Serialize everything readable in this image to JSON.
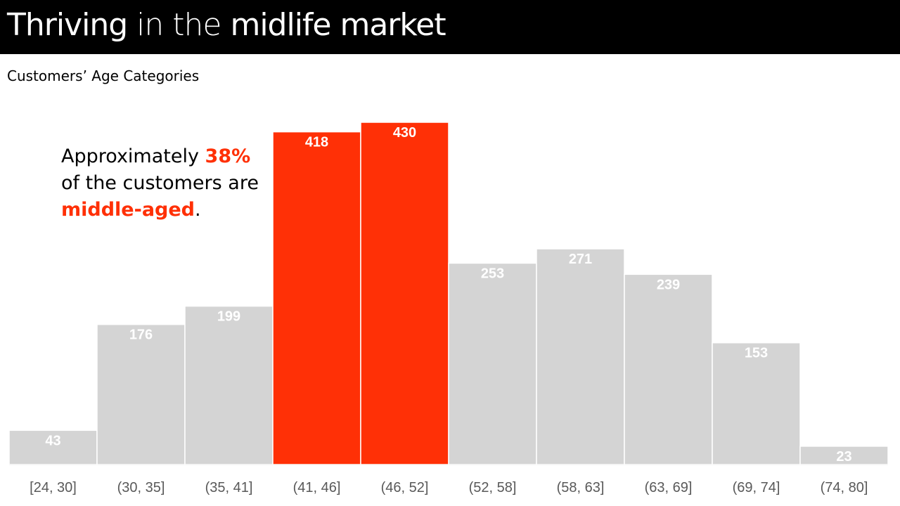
{
  "title": {
    "part1": "Thriving",
    "part2": " in the ",
    "part3": "midlife market"
  },
  "subtitle": "Customers’ Age Categories",
  "annotation": {
    "line1_prefix": "Approximately ",
    "line1_highlight": "38%",
    "line2": "of the customers are",
    "line3_highlight": "middle-aged",
    "line3_suffix": "."
  },
  "colors": {
    "highlight": "#ff3006",
    "base": "#d4d4d4",
    "title_bg": "#000000"
  },
  "chart_data": {
    "type": "bar",
    "title": "Customers’ Age Categories",
    "categories": [
      "[24, 30]",
      "(30, 35]",
      "(35, 41]",
      "(41, 46]",
      "(46, 52]",
      "(52, 58]",
      "(58, 63]",
      "(63, 69]",
      "(69, 74]",
      "(74, 80]"
    ],
    "values": [
      43,
      176,
      199,
      418,
      430,
      253,
      271,
      239,
      153,
      23
    ],
    "highlighted": [
      false,
      false,
      false,
      true,
      true,
      false,
      false,
      false,
      false,
      false
    ],
    "xlabel": "",
    "ylabel": "",
    "ylim": [
      0,
      430
    ],
    "grid": false,
    "legend": "none"
  }
}
